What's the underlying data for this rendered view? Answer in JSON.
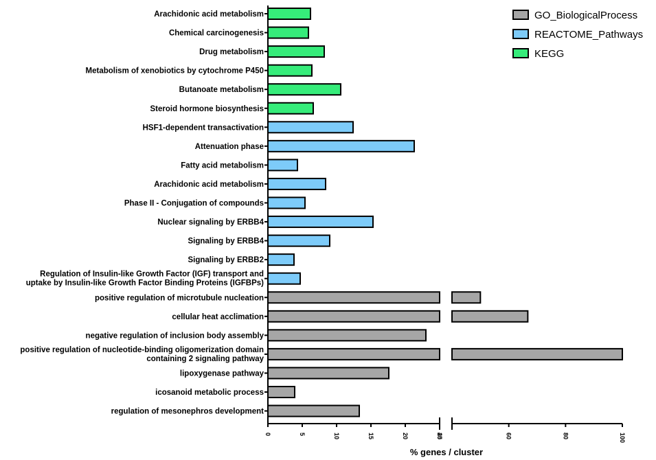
{
  "chart_data": {
    "type": "bar",
    "orientation": "horizontal",
    "title": "",
    "xlabel": "% genes / cluster",
    "ylabel": "",
    "axis_break": {
      "segment1": [
        0,
        25
      ],
      "segment2": [
        40,
        100
      ],
      "segment1_ticks": [
        "0",
        "5",
        "10",
        "15",
        "20",
        "25"
      ],
      "segment2_ticks": [
        "40",
        "60",
        "80",
        "100"
      ]
    },
    "grid": false,
    "legend_position": "top-right",
    "colors": {
      "GO_BiologicalProcess": "#a6a6a6",
      "REACTOME_Pathways": "#7dcbf9",
      "KEGG": "#36ec7a"
    },
    "series": [
      {
        "name": "GO_BiologicalProcess",
        "color": "#a6a6a6"
      },
      {
        "name": "REACTOME_Pathways",
        "color": "#7dcbf9"
      },
      {
        "name": "KEGG",
        "color": "#36ec7a"
      }
    ],
    "categories": [
      {
        "label": "Arachidonic acid metabolism",
        "value": 6.2,
        "series": "KEGG"
      },
      {
        "label": "Chemical carcinogenesis",
        "value": 5.9,
        "series": "KEGG"
      },
      {
        "label": "Drug metabolism",
        "value": 8.2,
        "series": "KEGG"
      },
      {
        "label": "Metabolism of xenobiotics by cytochrome P450",
        "value": 6.4,
        "series": "KEGG"
      },
      {
        "label": "Butanoate metabolism",
        "value": 10.6,
        "series": "KEGG"
      },
      {
        "label": "Steroid hormone biosynthesis",
        "value": 6.6,
        "series": "KEGG"
      },
      {
        "label": "HSF1-dependent transactivation",
        "value": 12.4,
        "series": "REACTOME_Pathways"
      },
      {
        "label": "Attenuation phase",
        "value": 21.3,
        "series": "REACTOME_Pathways"
      },
      {
        "label": "Fatty acid metabolism",
        "value": 4.3,
        "series": "REACTOME_Pathways"
      },
      {
        "label": "Arachidonic acid metabolism",
        "value": 8.4,
        "series": "REACTOME_Pathways"
      },
      {
        "label": "Phase II - Conjugation of compounds",
        "value": 5.4,
        "series": "REACTOME_Pathways"
      },
      {
        "label": "Nuclear signaling by ERBB4",
        "value": 15.3,
        "series": "REACTOME_Pathways"
      },
      {
        "label": "Signaling by ERBB4",
        "value": 9.0,
        "series": "REACTOME_Pathways"
      },
      {
        "label": "Signaling by ERBB2",
        "value": 3.8,
        "series": "REACTOME_Pathways"
      },
      {
        "label": [
          "Regulation of Insulin-like Growth Factor (IGF) transport and",
          "uptake by Insulin-like Growth Factor Binding Proteins (IGFBPs)"
        ],
        "value": 4.7,
        "series": "REACTOME_Pathways"
      },
      {
        "label": "positive regulation of microtubule nucleation",
        "value": 50,
        "series": "GO_BiologicalProcess"
      },
      {
        "label": "cellular heat acclimation",
        "value": 66.7,
        "series": "GO_BiologicalProcess"
      },
      {
        "label": "negative regulation of inclusion body assembly",
        "value": 23.0,
        "series": "GO_BiologicalProcess"
      },
      {
        "label": [
          "positive regulation of nucleotide-binding oligomerization domain",
          "containing 2 signaling pathway"
        ],
        "value": 100,
        "series": "GO_BiologicalProcess"
      },
      {
        "label": "lipoxygenase pathway",
        "value": 17.6,
        "series": "GO_BiologicalProcess"
      },
      {
        "label": "icosanoid metabolic process",
        "value": 3.9,
        "series": "GO_BiologicalProcess"
      },
      {
        "label": "regulation of mesonephros development",
        "value": 13.3,
        "series": "GO_BiologicalProcess"
      }
    ]
  }
}
